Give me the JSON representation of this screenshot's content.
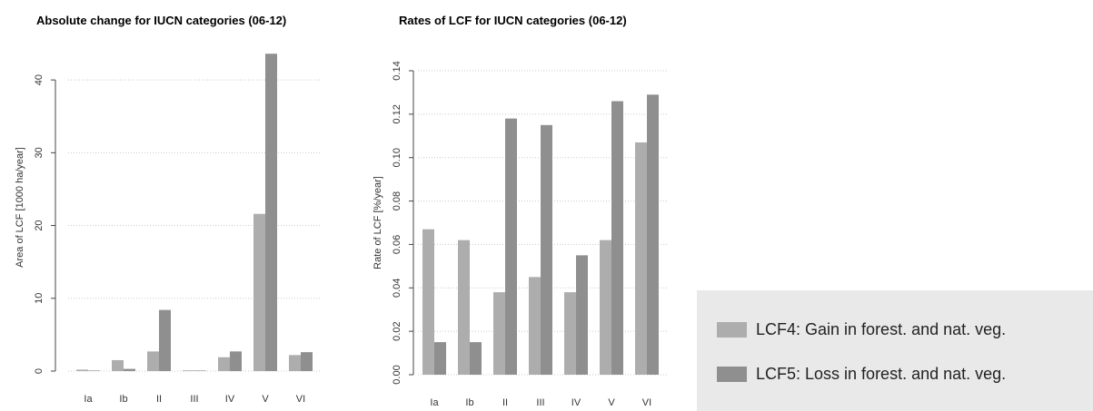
{
  "chart_data": [
    {
      "type": "bar",
      "title": "Absolute change for IUCN categories (06-12)",
      "ylabel": "Area of LCF [1000 ha/year]",
      "xlabel": "",
      "categories": [
        "Ia",
        "Ib",
        "II",
        "III",
        "IV",
        "V",
        "VI"
      ],
      "ylim": [
        0,
        45
      ],
      "yticks": [
        0,
        10,
        20,
        30,
        40
      ],
      "ytick_labels": [
        "0",
        "10",
        "20",
        "30",
        "40"
      ],
      "grid": "horizontal dotted",
      "series": [
        {
          "name": "LCF4: Gain in forest. and nat. veg.",
          "color": "#adadad",
          "values": [
            0.2,
            1.5,
            2.7,
            0.1,
            1.9,
            21.6,
            2.2
          ]
        },
        {
          "name": "LCF5: Loss in forest. and nat. veg.",
          "color": "#8f8f8f",
          "values": [
            0.05,
            0.3,
            8.4,
            0.05,
            2.7,
            43.6,
            2.6
          ]
        }
      ]
    },
    {
      "type": "bar",
      "title": "Rates of LCF for IUCN categories (06-12)",
      "ylabel": "Rate of LCF [%/year]",
      "xlabel": "",
      "categories": [
        "Ia",
        "Ib",
        "II",
        "III",
        "IV",
        "V",
        "VI"
      ],
      "ylim": [
        0,
        0.14
      ],
      "yticks": [
        0,
        0.02,
        0.04,
        0.06,
        0.08,
        0.1,
        0.12,
        0.14
      ],
      "ytick_labels": [
        "0.00",
        "0.02",
        "0.04",
        "0.06",
        "0.08",
        "0.10",
        "0.12",
        "0.14"
      ],
      "grid": "horizontal dotted",
      "series": [
        {
          "name": "LCF4: Gain in forest. and nat. veg.",
          "color": "#adadad",
          "values": [
            0.067,
            0.062,
            0.038,
            0.045,
            0.038,
            0.062,
            0.107
          ]
        },
        {
          "name": "LCF5: Loss in forest. and nat. veg.",
          "color": "#8f8f8f",
          "values": [
            0.015,
            0.015,
            0.118,
            0.115,
            0.055,
            0.126,
            0.129
          ]
        }
      ]
    }
  ],
  "legend": {
    "placement": "bottom-right",
    "items": [
      {
        "label": "LCF4: Gain in forest. and nat. veg.",
        "color": "#adadad"
      },
      {
        "label": "LCF5: Loss in forest. and nat. veg.",
        "color": "#8f8f8f"
      }
    ]
  }
}
